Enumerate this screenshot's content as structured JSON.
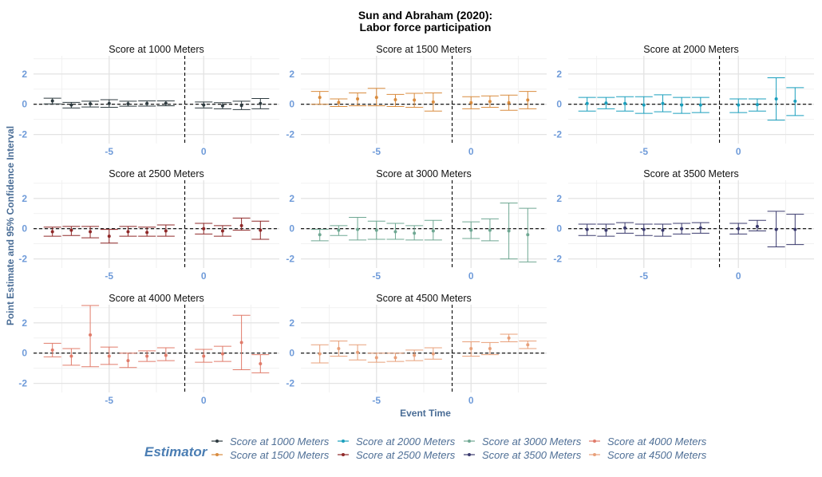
{
  "chart_data": {
    "type": "scatter",
    "title_line1": "Sun and Abraham (2020):",
    "title_line2": "Labor force participation",
    "xlabel": "Event Time",
    "ylabel": "Point Estimate and 95% Confidence Interval",
    "xlim": [
      -9,
      4
    ],
    "ylim": [
      -2.6,
      3.2
    ],
    "xticks": [
      -5,
      0
    ],
    "yticks": [
      -2,
      0,
      2
    ],
    "reference_x": -1,
    "reference_y": 0,
    "legend_title": "Estimator",
    "legend_position": "bottom",
    "series": [
      {
        "name": "Score at 1000 Meters",
        "color": "#2d3a3f",
        "x": [
          -8,
          -7,
          -6,
          -5,
          -4,
          -3,
          -2,
          0,
          1,
          2,
          3
        ],
        "est": [
          0.22,
          -0.05,
          0.03,
          0.05,
          0.03,
          0.05,
          0.06,
          -0.05,
          -0.1,
          -0.08,
          0.05
        ],
        "lo": [
          0.02,
          -0.25,
          -0.18,
          -0.2,
          -0.13,
          -0.12,
          -0.1,
          -0.25,
          -0.3,
          -0.35,
          -0.3
        ],
        "hi": [
          0.4,
          0.12,
          0.2,
          0.3,
          0.2,
          0.22,
          0.22,
          0.15,
          0.1,
          0.2,
          0.38
        ]
      },
      {
        "name": "Score at 1500 Meters",
        "color": "#d98c3f",
        "x": [
          -8,
          -7,
          -6,
          -5,
          -4,
          -3,
          -2,
          0,
          1,
          2,
          3
        ],
        "est": [
          0.45,
          0.12,
          0.35,
          0.45,
          0.3,
          0.28,
          0.15,
          0.1,
          0.18,
          0.1,
          0.28
        ],
        "lo": [
          0.0,
          -0.15,
          -0.1,
          -0.1,
          -0.15,
          -0.2,
          -0.45,
          -0.3,
          -0.2,
          -0.4,
          -0.3
        ],
        "hi": [
          0.85,
          0.35,
          0.75,
          1.05,
          0.65,
          0.72,
          0.75,
          0.5,
          0.55,
          0.6,
          0.85
        ]
      },
      {
        "name": "Score at 2000 Meters",
        "color": "#1a9fbd",
        "x": [
          -8,
          -7,
          -6,
          -5,
          -4,
          -3,
          -2,
          0,
          1,
          2,
          3
        ],
        "est": [
          0.05,
          0.08,
          0.05,
          -0.05,
          0.05,
          -0.05,
          -0.05,
          -0.05,
          -0.02,
          0.35,
          0.2
        ],
        "lo": [
          -0.45,
          -0.3,
          -0.45,
          -0.6,
          -0.5,
          -0.6,
          -0.55,
          -0.55,
          -0.45,
          -1.05,
          -0.75
        ],
        "hi": [
          0.45,
          0.45,
          0.5,
          0.5,
          0.62,
          0.45,
          0.45,
          0.35,
          0.35,
          1.75,
          1.1
        ]
      },
      {
        "name": "Score at 2500 Meters",
        "color": "#8f2929",
        "x": [
          -8,
          -7,
          -6,
          -5,
          -4,
          -3,
          -2,
          0,
          1,
          2,
          3
        ],
        "est": [
          -0.2,
          -0.1,
          -0.2,
          -0.5,
          -0.2,
          -0.25,
          -0.15,
          0.0,
          -0.15,
          0.2,
          -0.1
        ],
        "lo": [
          -0.5,
          -0.45,
          -0.6,
          -0.95,
          -0.5,
          -0.5,
          -0.5,
          -0.35,
          -0.5,
          -0.1,
          -0.7
        ],
        "hi": [
          0.1,
          0.15,
          0.15,
          -0.05,
          0.15,
          0.1,
          0.25,
          0.35,
          0.2,
          0.7,
          0.5
        ]
      },
      {
        "name": "Score at 3000 Meters",
        "color": "#6fa893",
        "x": [
          -8,
          -7,
          -6,
          -5,
          -4,
          -3,
          -2,
          0,
          1,
          2,
          3
        ],
        "est": [
          -0.4,
          -0.1,
          -0.05,
          -0.1,
          -0.2,
          -0.3,
          -0.15,
          -0.1,
          -0.1,
          -0.15,
          -0.4
        ],
        "lo": [
          -0.8,
          -0.45,
          -0.75,
          -0.7,
          -0.7,
          -0.75,
          -0.75,
          -0.65,
          -0.8,
          -2.0,
          -2.2
        ],
        "hi": [
          -0.05,
          0.2,
          0.75,
          0.5,
          0.35,
          0.2,
          0.55,
          0.45,
          0.65,
          1.7,
          1.35
        ]
      },
      {
        "name": "Score at 3500 Meters",
        "color": "#3a3a6e",
        "x": [
          -8,
          -7,
          -6,
          -5,
          -4,
          -3,
          -2,
          0,
          1,
          2,
          3
        ],
        "est": [
          -0.05,
          -0.1,
          0.05,
          -0.05,
          -0.1,
          0.0,
          0.05,
          0.0,
          0.15,
          -0.05,
          -0.05
        ],
        "lo": [
          -0.45,
          -0.5,
          -0.3,
          -0.45,
          -0.5,
          -0.35,
          -0.3,
          -0.35,
          -0.15,
          -1.2,
          -1.05
        ],
        "hi": [
          0.3,
          0.3,
          0.4,
          0.3,
          0.3,
          0.35,
          0.4,
          0.35,
          0.55,
          1.15,
          0.95
        ]
      },
      {
        "name": "Score at 4000 Meters",
        "color": "#e07b6a",
        "x": [
          -8,
          -7,
          -6,
          -5,
          -4,
          -3,
          -2,
          0,
          1,
          2,
          3
        ],
        "est": [
          0.2,
          -0.2,
          1.2,
          -0.2,
          -0.5,
          -0.2,
          -0.15,
          -0.2,
          -0.05,
          0.7,
          -0.7
        ],
        "lo": [
          -0.25,
          -0.8,
          -0.9,
          -0.75,
          -0.95,
          -0.55,
          -0.5,
          -0.6,
          -0.55,
          -1.1,
          -1.3
        ],
        "hi": [
          0.65,
          0.3,
          3.15,
          0.4,
          0.0,
          0.15,
          0.35,
          0.25,
          0.45,
          2.5,
          -0.1
        ]
      },
      {
        "name": "Score at 4500 Meters",
        "color": "#e8a07a",
        "x": [
          -8,
          -7,
          -6,
          -5,
          -4,
          -3,
          -2,
          0,
          1,
          2,
          3
        ],
        "est": [
          -0.05,
          0.3,
          0.05,
          -0.3,
          -0.3,
          -0.15,
          -0.05,
          0.3,
          0.3,
          1.0,
          0.55
        ],
        "lo": [
          -0.65,
          -0.2,
          -0.45,
          -0.6,
          -0.55,
          -0.5,
          -0.4,
          -0.2,
          -0.1,
          0.75,
          0.3
        ],
        "hi": [
          0.55,
          0.8,
          0.55,
          0.0,
          0.0,
          0.2,
          0.35,
          0.75,
          0.7,
          1.25,
          0.8
        ]
      }
    ]
  }
}
